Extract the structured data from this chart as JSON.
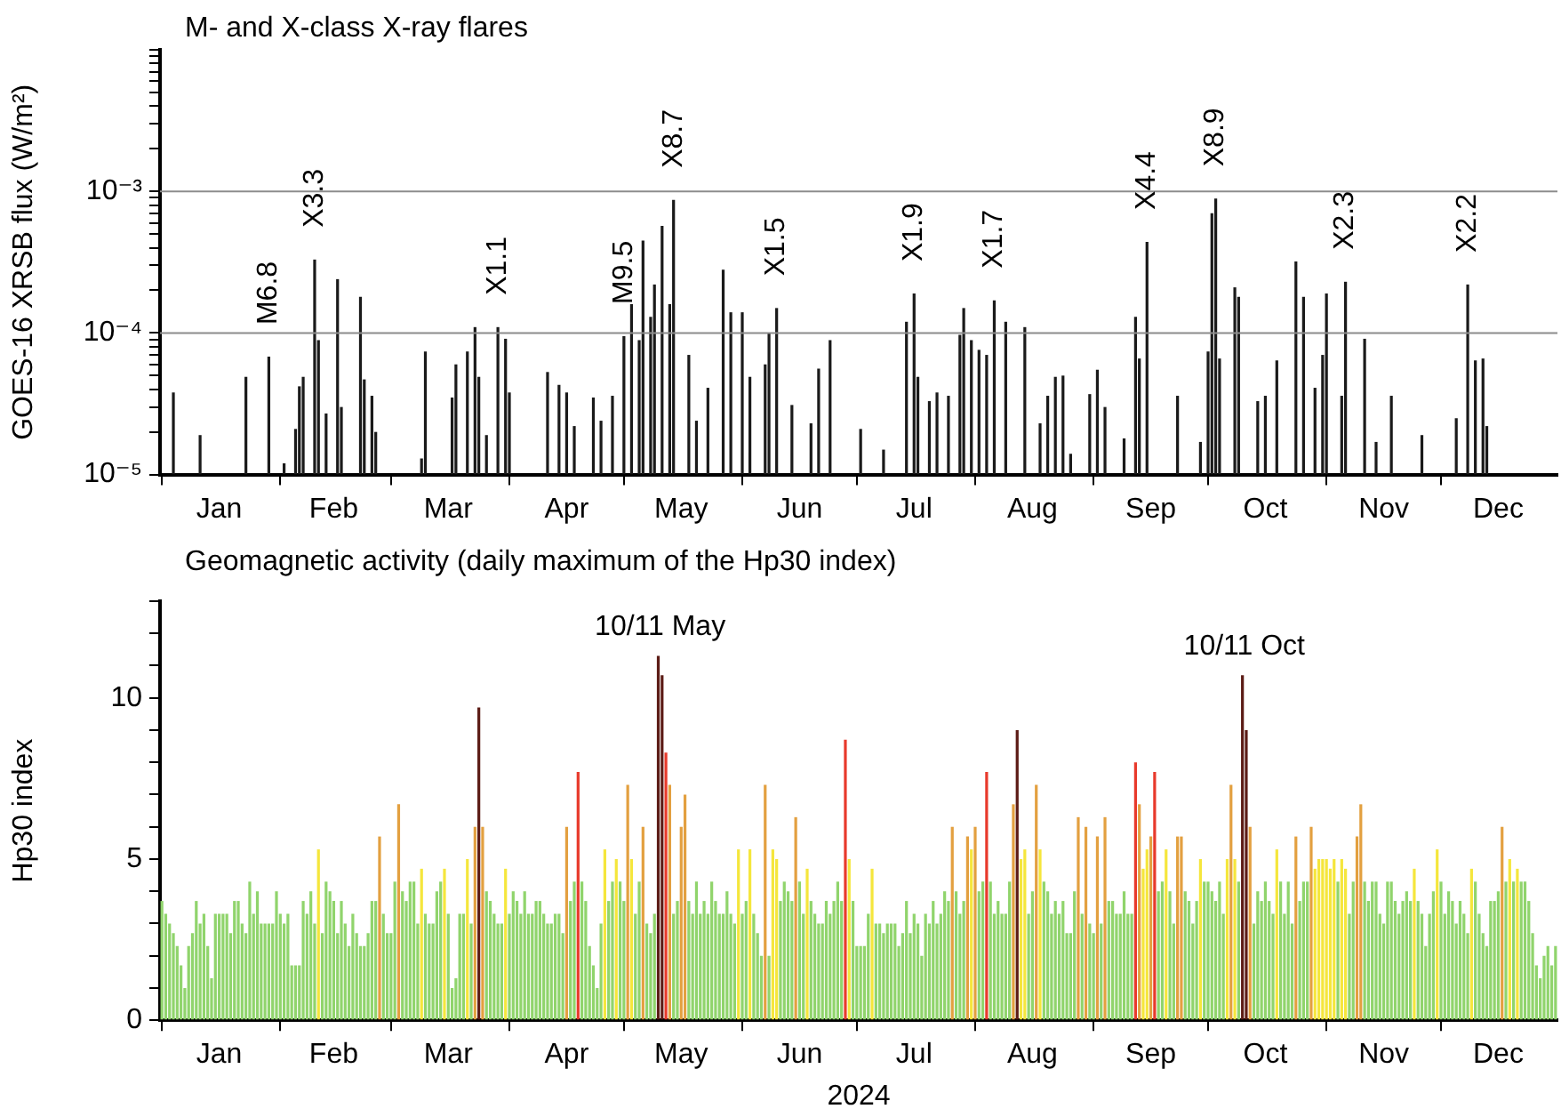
{
  "chart_data": [
    {
      "type": "bar",
      "title": "M- and X-class X-ray flares",
      "ylabel": "GOES-16 XRSB flux (W/m²)",
      "log": true,
      "color": "#1a1a1a",
      "xlim": [
        "2023-12-31T12:00",
        "2024-12-31T12:00"
      ],
      "xticks": [
        {
          "value": "2024-01-01",
          "label": null
        },
        {
          "value": "2024-01-16",
          "label": "Jan"
        },
        {
          "value": "2024-02-01",
          "label": null
        },
        {
          "value": "2024-02-15",
          "label": "Feb"
        },
        {
          "value": "2024-03-01",
          "label": null
        },
        {
          "value": "2024-03-16",
          "label": "Mar"
        },
        {
          "value": "2024-04-01",
          "label": null
        },
        {
          "value": "2024-04-16",
          "label": "Apr"
        },
        {
          "value": "2024-05-01",
          "label": null
        },
        {
          "value": "2024-05-16",
          "label": "May"
        },
        {
          "value": "2024-06-01",
          "label": null
        },
        {
          "value": "2024-06-16",
          "label": "Jun"
        },
        {
          "value": "2024-07-01",
          "label": null
        },
        {
          "value": "2024-07-16",
          "label": "Jul"
        },
        {
          "value": "2024-08-01",
          "label": null
        },
        {
          "value": "2024-08-16",
          "label": "Aug"
        },
        {
          "value": "2024-09-01",
          "label": null
        },
        {
          "value": "2024-09-16",
          "label": "Sep"
        },
        {
          "value": "2024-10-01",
          "label": null
        },
        {
          "value": "2024-10-16",
          "label": "Oct"
        },
        {
          "value": "2024-11-01",
          "label": null
        },
        {
          "value": "2024-11-16",
          "label": "Nov"
        },
        {
          "value": "2024-12-01",
          "label": null
        },
        {
          "value": "2024-12-16",
          "label": "Dec"
        }
      ],
      "ylim": [
        1e-05,
        0.01
      ],
      "yticks": [
        {
          "value": 1e-05,
          "label": "10⁻⁵"
        },
        {
          "value": 2e-05,
          "label": null
        },
        {
          "value": 3e-05,
          "label": null
        },
        {
          "value": 4e-05,
          "label": null
        },
        {
          "value": 5e-05,
          "label": null
        },
        {
          "value": 6e-05,
          "label": null
        },
        {
          "value": 7e-05,
          "label": null
        },
        {
          "value": 8e-05,
          "label": null
        },
        {
          "value": 9e-05,
          "label": null
        },
        {
          "value": 0.0001,
          "label": "10⁻⁴"
        },
        {
          "value": 0.0002,
          "label": null
        },
        {
          "value": 0.0003,
          "label": null
        },
        {
          "value": 0.0004,
          "label": null
        },
        {
          "value": 0.0005,
          "label": null
        },
        {
          "value": 0.0006,
          "label": null
        },
        {
          "value": 0.0007,
          "label": null
        },
        {
          "value": 0.0008,
          "label": null
        },
        {
          "value": 0.0009,
          "label": null
        },
        {
          "value": 0.001,
          "label": "10⁻³"
        },
        {
          "value": 0.002,
          "label": null
        },
        {
          "value": 0.003,
          "label": null
        },
        {
          "value": 0.004,
          "label": null
        },
        {
          "value": 0.005,
          "label": null
        },
        {
          "value": 0.006,
          "label": null
        },
        {
          "value": 0.007,
          "label": null
        },
        {
          "value": 0.008,
          "label": null
        },
        {
          "value": 0.009,
          "label": null
        },
        {
          "value": 0.01,
          "label": null
        }
      ],
      "ref_lines": [
        {
          "axis": "y",
          "value": 0.0001,
          "color": "#8c8c8c"
        },
        {
          "axis": "y",
          "value": 0.001,
          "color": "#8c8c8c"
        }
      ],
      "x": [
        "2024-01-04",
        "2024-01-11",
        "2024-01-23",
        "2024-01-29",
        "2024-02-02",
        "2024-02-05",
        "2024-02-06",
        "2024-02-07",
        "2024-02-10",
        "2024-02-11",
        "2024-02-13",
        "2024-02-16",
        "2024-02-17",
        "2024-02-22",
        "2024-02-23",
        "2024-02-25",
        "2024-02-26",
        "2024-03-09",
        "2024-03-10",
        "2024-03-17",
        "2024-03-18",
        "2024-03-21",
        "2024-03-23",
        "2024-03-24",
        "2024-03-26",
        "2024-03-29",
        "2024-03-31",
        "2024-04-01",
        "2024-04-11",
        "2024-04-14",
        "2024-04-16",
        "2024-04-18",
        "2024-04-23",
        "2024-04-25",
        "2024-04-28",
        "2024-05-01",
        "2024-05-03",
        "2024-05-05",
        "2024-05-06",
        "2024-05-08",
        "2024-05-09",
        "2024-05-11",
        "2024-05-13",
        "2024-05-14",
        "2024-05-18",
        "2024-05-20",
        "2024-05-23",
        "2024-05-27",
        "2024-05-29",
        "2024-06-01",
        "2024-06-03",
        "2024-06-07",
        "2024-06-08",
        "2024-06-10",
        "2024-06-14",
        "2024-06-19",
        "2024-06-21",
        "2024-06-24",
        "2024-07-02",
        "2024-07-08",
        "2024-07-14",
        "2024-07-16",
        "2024-07-17",
        "2024-07-20",
        "2024-07-22",
        "2024-07-25",
        "2024-07-28",
        "2024-07-29",
        "2024-07-31",
        "2024-08-02",
        "2024-08-04",
        "2024-08-06",
        "2024-08-09",
        "2024-08-14",
        "2024-08-18",
        "2024-08-20",
        "2024-08-22",
        "2024-08-24",
        "2024-08-26",
        "2024-08-31",
        "2024-09-02",
        "2024-09-04",
        "2024-09-09",
        "2024-09-12",
        "2024-09-13",
        "2024-09-15",
        "2024-09-23",
        "2024-09-29",
        "2024-10-01",
        "2024-10-02",
        "2024-10-03",
        "2024-10-04",
        "2024-10-08",
        "2024-10-09",
        "2024-10-14",
        "2024-10-16",
        "2024-10-19",
        "2024-10-24",
        "2024-10-26",
        "2024-10-29",
        "2024-10-31",
        "2024-11-01",
        "2024-11-05",
        "2024-11-06",
        "2024-11-11",
        "2024-11-14",
        "2024-11-18",
        "2024-11-26",
        "2024-12-05",
        "2024-12-08",
        "2024-12-10",
        "2024-12-12",
        "2024-12-13"
      ],
      "values": [
        3.8e-05,
        1.9e-05,
        4.9e-05,
        6.8e-05,
        1.2e-05,
        2.1e-05,
        4.2e-05,
        4.9e-05,
        0.00033,
        8.9e-05,
        2.7e-05,
        0.00024,
        3e-05,
        0.00018,
        4.7e-05,
        3.6e-05,
        2e-05,
        1.3e-05,
        7.4e-05,
        3.5e-05,
        6e-05,
        7.4e-05,
        0.00011,
        4.9e-05,
        1.9e-05,
        0.00011,
        9.1e-05,
        3.8e-05,
        5.3e-05,
        4.3e-05,
        3.8e-05,
        2.2e-05,
        3.5e-05,
        2.4e-05,
        3.6e-05,
        9.5e-05,
        0.00016,
        8.9e-05,
        0.00045,
        0.00013,
        0.00022,
        0.00057,
        0.00016,
        0.00087,
        7e-05,
        2.4e-05,
        4.1e-05,
        0.00028,
        0.00014,
        0.00014,
        4.9e-05,
        6e-05,
        0.0001,
        0.00015,
        3.1e-05,
        2.3e-05,
        5.6e-05,
        8.9e-05,
        2.1e-05,
        1.5e-05,
        0.00012,
        0.00019,
        4.9e-05,
        3.3e-05,
        3.8e-05,
        3.6e-05,
        9.7e-05,
        0.00015,
        8.9e-05,
        7.6e-05,
        7e-05,
        0.00017,
        0.00012,
        0.00011,
        2.3e-05,
        3.6e-05,
        4.9e-05,
        5e-05,
        1.4e-05,
        3.7e-05,
        5.5e-05,
        3e-05,
        1.8e-05,
        0.00013,
        6.6e-05,
        0.00044,
        3.6e-05,
        1.7e-05,
        7.4e-05,
        0.0007,
        0.00089,
        6.6e-05,
        0.00021,
        0.00018,
        3.3e-05,
        3.6e-05,
        6.4e-05,
        0.00032,
        0.00018,
        4.1e-05,
        7e-05,
        0.00019,
        3.6e-05,
        0.00023,
        9.1e-05,
        1.7e-05,
        3.6e-05,
        1.9e-05,
        2.5e-05,
        0.00022,
        6.4e-05,
        6.6e-05,
        2.2e-05
      ],
      "annotations": [
        {
          "text": "M6.8",
          "x": "2024-01-29",
          "y": 6.8e-05
        },
        {
          "text": "X3.3",
          "x": "2024-02-10",
          "y": 0.00033
        },
        {
          "text": "X1.1",
          "x": "2024-03-29",
          "y": 0.00011
        },
        {
          "text": "M9.5",
          "x": "2024-05-01",
          "y": 9.5e-05
        },
        {
          "text": "X8.7",
          "x": "2024-05-14",
          "y": 0.00087
        },
        {
          "text": "X1.5",
          "x": "2024-06-10",
          "y": 0.00015
        },
        {
          "text": "X1.9",
          "x": "2024-07-16",
          "y": 0.00019
        },
        {
          "text": "X1.7",
          "x": "2024-08-06",
          "y": 0.00017
        },
        {
          "text": "X4.4",
          "x": "2024-09-15",
          "y": 0.00044
        },
        {
          "text": "X8.9",
          "x": "2024-10-03",
          "y": 0.00089
        },
        {
          "text": "X2.3",
          "x": "2024-11-06",
          "y": 0.00023
        },
        {
          "text": "X2.2",
          "x": "2024-12-08",
          "y": 0.00022
        }
      ]
    },
    {
      "type": "bar",
      "title": "Geomagnetic activity (daily maximum of the Hp30 index)",
      "ylabel": "Hp30 index",
      "xlabel": "2024",
      "xlim": [
        "2023-12-31T12:00",
        "2024-12-31T12:00"
      ],
      "xticks": [
        {
          "value": "2024-01-01",
          "label": null
        },
        {
          "value": "2024-01-16",
          "label": "Jan"
        },
        {
          "value": "2024-02-01",
          "label": null
        },
        {
          "value": "2024-02-15",
          "label": "Feb"
        },
        {
          "value": "2024-03-01",
          "label": null
        },
        {
          "value": "2024-03-16",
          "label": "Mar"
        },
        {
          "value": "2024-04-01",
          "label": null
        },
        {
          "value": "2024-04-16",
          "label": "Apr"
        },
        {
          "value": "2024-05-01",
          "label": null
        },
        {
          "value": "2024-05-16",
          "label": "May"
        },
        {
          "value": "2024-06-01",
          "label": null
        },
        {
          "value": "2024-06-16",
          "label": "Jun"
        },
        {
          "value": "2024-07-01",
          "label": null
        },
        {
          "value": "2024-07-16",
          "label": "Jul"
        },
        {
          "value": "2024-08-01",
          "label": null
        },
        {
          "value": "2024-08-16",
          "label": "Aug"
        },
        {
          "value": "2024-09-01",
          "label": null
        },
        {
          "value": "2024-09-16",
          "label": "Sep"
        },
        {
          "value": "2024-10-01",
          "label": null
        },
        {
          "value": "2024-10-16",
          "label": "Oct"
        },
        {
          "value": "2024-11-01",
          "label": null
        },
        {
          "value": "2024-11-16",
          "label": "Nov"
        },
        {
          "value": "2024-12-01",
          "label": null
        },
        {
          "value": "2024-12-16",
          "label": "Dec"
        }
      ],
      "ylim": [
        0,
        13
      ],
      "yticks": [
        0,
        {
          "value": 1,
          "label": null
        },
        {
          "value": 2,
          "label": null
        },
        {
          "value": 3,
          "label": null
        },
        {
          "value": 4,
          "label": null
        },
        5,
        {
          "value": 6,
          "label": null
        },
        {
          "value": 7,
          "label": null
        },
        {
          "value": 8,
          "label": null
        },
        {
          "value": 9,
          "label": null
        },
        10,
        {
          "value": 11,
          "label": null
        },
        {
          "value": 12,
          "label": null
        },
        {
          "value": 13,
          "label": null
        }
      ],
      "annotations": [
        {
          "text": "10/11 May",
          "x": "2024-05-10T12:00",
          "y": 11.3
        },
        {
          "text": "10/11 Oct",
          "x": "2024-10-10T12:00",
          "y": 10.7
        }
      ],
      "x": [
        "2024-01-01",
        "2024-01-02",
        "2024-01-03",
        "2024-01-04",
        "2024-01-05",
        "2024-01-06",
        "2024-01-07",
        "2024-01-08",
        "2024-01-09",
        "2024-01-10",
        "2024-01-11",
        "2024-01-12",
        "2024-01-13",
        "2024-01-14",
        "2024-01-15",
        "2024-01-16",
        "2024-01-17",
        "2024-01-18",
        "2024-01-19",
        "2024-01-20",
        "2024-01-21",
        "2024-01-22",
        "2024-01-23",
        "2024-01-24",
        "2024-01-25",
        "2024-01-26",
        "2024-01-27",
        "2024-01-28",
        "2024-01-29",
        "2024-01-30",
        "2024-01-31",
        "2024-02-01",
        "2024-02-02",
        "2024-02-03",
        "2024-02-04",
        "2024-02-05",
        "2024-02-06",
        "2024-02-07",
        "2024-02-08",
        "2024-02-09",
        "2024-02-10",
        "2024-02-11",
        "2024-02-12",
        "2024-02-13",
        "2024-02-14",
        "2024-02-15",
        "2024-02-16",
        "2024-02-17",
        "2024-02-18",
        "2024-02-19",
        "2024-02-20",
        "2024-02-21",
        "2024-02-22",
        "2024-02-23",
        "2024-02-24",
        "2024-02-25",
        "2024-02-26",
        "2024-02-27",
        "2024-02-28",
        "2024-02-29",
        "2024-03-01",
        "2024-03-02",
        "2024-03-03",
        "2024-03-04",
        "2024-03-05",
        "2024-03-06",
        "2024-03-07",
        "2024-03-08",
        "2024-03-09",
        "2024-03-10",
        "2024-03-11",
        "2024-03-12",
        "2024-03-13",
        "2024-03-14",
        "2024-03-15",
        "2024-03-16",
        "2024-03-17",
        "2024-03-18",
        "2024-03-19",
        "2024-03-20",
        "2024-03-21",
        "2024-03-22",
        "2024-03-23",
        "2024-03-24",
        "2024-03-25",
        "2024-03-26",
        "2024-03-27",
        "2024-03-28",
        "2024-03-29",
        "2024-03-30",
        "2024-03-31",
        "2024-04-01",
        "2024-04-02",
        "2024-04-03",
        "2024-04-04",
        "2024-04-05",
        "2024-04-06",
        "2024-04-07",
        "2024-04-08",
        "2024-04-09",
        "2024-04-10",
        "2024-04-11",
        "2024-04-12",
        "2024-04-13",
        "2024-04-14",
        "2024-04-15",
        "2024-04-16",
        "2024-04-17",
        "2024-04-18",
        "2024-04-19",
        "2024-04-20",
        "2024-04-21",
        "2024-04-22",
        "2024-04-23",
        "2024-04-24",
        "2024-04-25",
        "2024-04-26",
        "2024-04-27",
        "2024-04-28",
        "2024-04-29",
        "2024-04-30",
        "2024-05-01",
        "2024-05-02",
        "2024-05-03",
        "2024-05-04",
        "2024-05-05",
        "2024-05-06",
        "2024-05-07",
        "2024-05-08",
        "2024-05-09",
        "2024-05-10",
        "2024-05-11",
        "2024-05-12",
        "2024-05-13",
        "2024-05-14",
        "2024-05-15",
        "2024-05-16",
        "2024-05-17",
        "2024-05-18",
        "2024-05-19",
        "2024-05-20",
        "2024-05-21",
        "2024-05-22",
        "2024-05-23",
        "2024-05-24",
        "2024-05-25",
        "2024-05-26",
        "2024-05-27",
        "2024-05-28",
        "2024-05-29",
        "2024-05-30",
        "2024-05-31",
        "2024-06-01",
        "2024-06-02",
        "2024-06-03",
        "2024-06-04",
        "2024-06-05",
        "2024-06-06",
        "2024-06-07",
        "2024-06-08",
        "2024-06-09",
        "2024-06-10",
        "2024-06-11",
        "2024-06-12",
        "2024-06-13",
        "2024-06-14",
        "2024-06-15",
        "2024-06-16",
        "2024-06-17",
        "2024-06-18",
        "2024-06-19",
        "2024-06-20",
        "2024-06-21",
        "2024-06-22",
        "2024-06-23",
        "2024-06-24",
        "2024-06-25",
        "2024-06-26",
        "2024-06-27",
        "2024-06-28",
        "2024-06-29",
        "2024-06-30",
        "2024-07-01",
        "2024-07-02",
        "2024-07-03",
        "2024-07-04",
        "2024-07-05",
        "2024-07-06",
        "2024-07-07",
        "2024-07-08",
        "2024-07-09",
        "2024-07-10",
        "2024-07-11",
        "2024-07-12",
        "2024-07-13",
        "2024-07-14",
        "2024-07-15",
        "2024-07-16",
        "2024-07-17",
        "2024-07-18",
        "2024-07-19",
        "2024-07-20",
        "2024-07-21",
        "2024-07-22",
        "2024-07-23",
        "2024-07-24",
        "2024-07-25",
        "2024-07-26",
        "2024-07-27",
        "2024-07-28",
        "2024-07-29",
        "2024-07-30",
        "2024-07-31",
        "2024-08-01",
        "2024-08-02",
        "2024-08-03",
        "2024-08-04",
        "2024-08-05",
        "2024-08-06",
        "2024-08-07",
        "2024-08-08",
        "2024-08-09",
        "2024-08-10",
        "2024-08-11",
        "2024-08-12",
        "2024-08-13",
        "2024-08-14",
        "2024-08-15",
        "2024-08-16",
        "2024-08-17",
        "2024-08-18",
        "2024-08-19",
        "2024-08-20",
        "2024-08-21",
        "2024-08-22",
        "2024-08-23",
        "2024-08-24",
        "2024-08-25",
        "2024-08-26",
        "2024-08-27",
        "2024-08-28",
        "2024-08-29",
        "2024-08-30",
        "2024-08-31",
        "2024-09-01",
        "2024-09-02",
        "2024-09-03",
        "2024-09-04",
        "2024-09-05",
        "2024-09-06",
        "2024-09-07",
        "2024-09-08",
        "2024-09-09",
        "2024-09-10",
        "2024-09-11",
        "2024-09-12",
        "2024-09-13",
        "2024-09-14",
        "2024-09-15",
        "2024-09-16",
        "2024-09-17",
        "2024-09-18",
        "2024-09-19",
        "2024-09-20",
        "2024-09-21",
        "2024-09-22",
        "2024-09-23",
        "2024-09-24",
        "2024-09-25",
        "2024-09-26",
        "2024-09-27",
        "2024-09-28",
        "2024-09-29",
        "2024-09-30",
        "2024-10-01",
        "2024-10-02",
        "2024-10-03",
        "2024-10-04",
        "2024-10-05",
        "2024-10-06",
        "2024-10-07",
        "2024-10-08",
        "2024-10-09",
        "2024-10-10",
        "2024-10-11",
        "2024-10-12",
        "2024-10-13",
        "2024-10-14",
        "2024-10-15",
        "2024-10-16",
        "2024-10-17",
        "2024-10-18",
        "2024-10-19",
        "2024-10-20",
        "2024-10-21",
        "2024-10-22",
        "2024-10-23",
        "2024-10-24",
        "2024-10-25",
        "2024-10-26",
        "2024-10-27",
        "2024-10-28",
        "2024-10-29",
        "2024-10-30",
        "2024-10-31",
        "2024-11-01",
        "2024-11-02",
        "2024-11-03",
        "2024-11-04",
        "2024-11-05",
        "2024-11-06",
        "2024-11-07",
        "2024-11-08",
        "2024-11-09",
        "2024-11-10",
        "2024-11-11",
        "2024-11-12",
        "2024-11-13",
        "2024-11-14",
        "2024-11-15",
        "2024-11-16",
        "2024-11-17",
        "2024-11-18",
        "2024-11-19",
        "2024-11-20",
        "2024-11-21",
        "2024-11-22",
        "2024-11-23",
        "2024-11-24",
        "2024-11-25",
        "2024-11-26",
        "2024-11-27",
        "2024-11-28",
        "2024-11-29",
        "2024-11-30",
        "2024-12-01",
        "2024-12-02",
        "2024-12-03",
        "2024-12-04",
        "2024-12-05",
        "2024-12-06",
        "2024-12-07",
        "2024-12-08",
        "2024-12-09",
        "2024-12-10",
        "2024-12-11",
        "2024-12-12",
        "2024-12-13",
        "2024-12-14",
        "2024-12-15",
        "2024-12-16",
        "2024-12-17",
        "2024-12-18",
        "2024-12-19",
        "2024-12-20",
        "2024-12-21",
        "2024-12-22",
        "2024-12-23",
        "2024-12-24",
        "2024-12-25",
        "2024-12-26",
        "2024-12-27",
        "2024-12-28",
        "2024-12-29",
        "2024-12-30",
        "2024-12-31"
      ],
      "values": [
        3.7,
        3.3,
        3,
        2.7,
        2.3,
        1.7,
        1,
        2.3,
        2.7,
        3.7,
        3,
        3.3,
        2.3,
        1.3,
        3.3,
        3.3,
        3.3,
        3.3,
        2.7,
        3.7,
        3.7,
        3,
        2.7,
        4.3,
        3.3,
        4,
        3,
        3,
        3,
        3,
        4,
        3.3,
        3,
        3.3,
        1.7,
        1.7,
        1.7,
        3.7,
        3.3,
        4,
        3,
        5.3,
        2.7,
        4.3,
        4,
        3.7,
        2.7,
        3.7,
        3,
        2.3,
        3.3,
        2.7,
        2.3,
        2.3,
        2.7,
        3.7,
        3.7,
        5.7,
        3.3,
        2.7,
        2.7,
        4.3,
        6.7,
        4,
        3.7,
        4.3,
        4.3,
        3,
        4.7,
        3.3,
        3,
        3,
        4,
        4.3,
        4.7,
        3.3,
        1,
        1.3,
        3.3,
        3.3,
        5,
        3,
        6,
        9.7,
        6,
        4,
        3.7,
        3.3,
        3,
        3,
        4.7,
        3.3,
        4,
        3.7,
        3.3,
        4,
        3.3,
        3.3,
        3.7,
        3.7,
        3.3,
        3,
        3,
        3.3,
        3.3,
        2.7,
        6,
        3.7,
        4.3,
        7.7,
        4.3,
        3.7,
        2.3,
        1.7,
        1,
        3,
        5.3,
        3.7,
        4.3,
        5,
        4.3,
        3.7,
        7.3,
        5,
        3.3,
        4.3,
        6,
        3,
        2.7,
        3.3,
        11.3,
        10.7,
        8.3,
        7.3,
        3.3,
        3.7,
        6,
        7,
        3.7,
        3.3,
        4.3,
        3.3,
        3.7,
        3.3,
        4.3,
        3.7,
        3.3,
        3.3,
        4,
        3.3,
        3,
        5.3,
        3.3,
        3.7,
        5.3,
        3.3,
        2.7,
        2,
        7.3,
        2,
        5.3,
        5,
        3.7,
        4.3,
        4,
        3.7,
        6.3,
        4.3,
        3.3,
        4.7,
        3.7,
        3.3,
        3,
        3,
        3.7,
        3.3,
        3.7,
        4.3,
        3.7,
        8.7,
        5,
        3.7,
        2.3,
        2.3,
        2.3,
        3.3,
        4.7,
        3,
        3,
        2.7,
        3,
        3,
        3,
        2.3,
        2.7,
        3.7,
        2.7,
        3.3,
        3,
        2,
        3.3,
        3,
        3.7,
        3,
        3.3,
        4,
        3.7,
        6,
        4,
        3.3,
        3.7,
        5.7,
        5.3,
        6,
        4,
        4.3,
        7.7,
        4.3,
        3.3,
        3.7,
        3.3,
        3.3,
        4.3,
        6.7,
        9,
        5,
        5.3,
        3.3,
        4,
        7.3,
        5.3,
        4.3,
        4,
        3.3,
        3.7,
        3.3,
        3.7,
        2.7,
        2.7,
        4,
        6.3,
        3.3,
        6,
        3,
        2.7,
        5.7,
        3,
        6.3,
        3.7,
        3.7,
        3.3,
        3.3,
        4,
        3.3,
        3.3,
        8,
        6.7,
        4.7,
        5.3,
        5.7,
        7.7,
        4,
        4.3,
        5.3,
        4,
        3,
        5.7,
        5.7,
        4,
        3.7,
        3,
        3.7,
        5,
        4.3,
        4.3,
        4,
        3.7,
        4.3,
        3.3,
        5,
        7.3,
        5,
        4.3,
        10.7,
        9,
        6,
        3,
        4,
        3.7,
        4.3,
        3.7,
        3.3,
        5.3,
        4.3,
        3.3,
        4.3,
        3,
        5.7,
        3.7,
        4.3,
        4.3,
        6,
        4.7,
        5,
        5,
        5,
        4.7,
        5,
        4.3,
        5,
        4.7,
        3.3,
        4.3,
        5.7,
        6.7,
        4.3,
        3.7,
        4.3,
        4.3,
        3.3,
        3,
        4.3,
        4.3,
        3.7,
        3.3,
        3.7,
        4,
        3.7,
        4.7,
        3.7,
        3.3,
        2.3,
        3.3,
        4,
        5.3,
        4.3,
        3.3,
        4,
        3.7,
        3,
        3.7,
        3.3,
        2.7,
        4.7,
        4.3,
        3.3,
        2.7,
        2.3,
        3.7,
        3.7,
        4,
        6,
        4.3,
        5,
        4.3,
        4.7,
        4.3,
        4.3,
        3.7,
        2.7,
        1.7,
        1.3,
        2,
        2.3,
        1.7,
        2.3
      ],
      "colors": [
        "#90d46c",
        "#90d46c",
        "#90d46c",
        "#90d46c",
        "#90d46c",
        "#90d46c",
        "#90d46c",
        "#90d46c",
        "#90d46c",
        "#90d46c",
        "#90d46c",
        "#90d46c",
        "#90d46c",
        "#90d46c",
        "#90d46c",
        "#90d46c",
        "#90d46c",
        "#90d46c",
        "#90d46c",
        "#90d46c",
        "#90d46c",
        "#90d46c",
        "#90d46c",
        "#90d46c",
        "#90d46c",
        "#90d46c",
        "#90d46c",
        "#90d46c",
        "#90d46c",
        "#90d46c",
        "#90d46c",
        "#90d46c",
        "#90d46c",
        "#90d46c",
        "#90d46c",
        "#90d46c",
        "#90d46c",
        "#90d46c",
        "#90d46c",
        "#90d46c",
        "#90d46c",
        "#f5e63c",
        "#90d46c",
        "#90d46c",
        "#90d46c",
        "#90d46c",
        "#90d46c",
        "#90d46c",
        "#90d46c",
        "#90d46c",
        "#90d46c",
        "#90d46c",
        "#90d46c",
        "#90d46c",
        "#90d46c",
        "#90d46c",
        "#90d46c",
        "#e3a040",
        "#90d46c",
        "#90d46c",
        "#90d46c",
        "#90d46c",
        "#e3a040",
        "#90d46c",
        "#90d46c",
        "#90d46c",
        "#90d46c",
        "#90d46c",
        "#f5e63c",
        "#90d46c",
        "#90d46c",
        "#90d46c",
        "#90d46c",
        "#90d46c",
        "#f5e63c",
        "#90d46c",
        "#90d46c",
        "#90d46c",
        "#90d46c",
        "#90d46c",
        "#f5e63c",
        "#90d46c",
        "#e3a040",
        "#5c1c16",
        "#e3a040",
        "#90d46c",
        "#90d46c",
        "#90d46c",
        "#90d46c",
        "#90d46c",
        "#f5e63c",
        "#90d46c",
        "#90d46c",
        "#90d46c",
        "#90d46c",
        "#90d46c",
        "#90d46c",
        "#90d46c",
        "#90d46c",
        "#90d46c",
        "#90d46c",
        "#90d46c",
        "#90d46c",
        "#90d46c",
        "#90d46c",
        "#90d46c",
        "#e3a040",
        "#90d46c",
        "#90d46c",
        "#e83a2c",
        "#90d46c",
        "#90d46c",
        "#90d46c",
        "#90d46c",
        "#90d46c",
        "#90d46c",
        "#f5e63c",
        "#90d46c",
        "#90d46c",
        "#f5e63c",
        "#90d46c",
        "#90d46c",
        "#e3a040",
        "#f5e63c",
        "#90d46c",
        "#90d46c",
        "#e3a040",
        "#90d46c",
        "#90d46c",
        "#90d46c",
        "#5c1c16",
        "#5c1c16",
        "#e83a2c",
        "#e3a040",
        "#90d46c",
        "#90d46c",
        "#e3a040",
        "#e3a040",
        "#90d46c",
        "#90d46c",
        "#90d46c",
        "#90d46c",
        "#90d46c",
        "#90d46c",
        "#90d46c",
        "#90d46c",
        "#90d46c",
        "#90d46c",
        "#90d46c",
        "#90d46c",
        "#90d46c",
        "#f5e63c",
        "#90d46c",
        "#90d46c",
        "#f5e63c",
        "#90d46c",
        "#90d46c",
        "#90d46c",
        "#e3a040",
        "#90d46c",
        "#f5e63c",
        "#f5e63c",
        "#90d46c",
        "#90d46c",
        "#90d46c",
        "#90d46c",
        "#e3a040",
        "#90d46c",
        "#90d46c",
        "#f5e63c",
        "#90d46c",
        "#90d46c",
        "#90d46c",
        "#90d46c",
        "#90d46c",
        "#90d46c",
        "#90d46c",
        "#90d46c",
        "#90d46c",
        "#e83a2c",
        "#f5e63c",
        "#90d46c",
        "#90d46c",
        "#90d46c",
        "#90d46c",
        "#90d46c",
        "#f5e63c",
        "#90d46c",
        "#90d46c",
        "#90d46c",
        "#90d46c",
        "#90d46c",
        "#90d46c",
        "#90d46c",
        "#90d46c",
        "#90d46c",
        "#90d46c",
        "#90d46c",
        "#90d46c",
        "#90d46c",
        "#90d46c",
        "#90d46c",
        "#90d46c",
        "#90d46c",
        "#90d46c",
        "#90d46c",
        "#90d46c",
        "#e3a040",
        "#90d46c",
        "#90d46c",
        "#90d46c",
        "#e3a040",
        "#f5e63c",
        "#e3a040",
        "#90d46c",
        "#90d46c",
        "#e83a2c",
        "#90d46c",
        "#90d46c",
        "#90d46c",
        "#90d46c",
        "#90d46c",
        "#90d46c",
        "#e3a040",
        "#5c1c16",
        "#f5e63c",
        "#f5e63c",
        "#90d46c",
        "#90d46c",
        "#e3a040",
        "#f5e63c",
        "#90d46c",
        "#90d46c",
        "#90d46c",
        "#90d46c",
        "#90d46c",
        "#90d46c",
        "#90d46c",
        "#90d46c",
        "#90d46c",
        "#e3a040",
        "#90d46c",
        "#e3a040",
        "#90d46c",
        "#90d46c",
        "#e3a040",
        "#90d46c",
        "#e3a040",
        "#90d46c",
        "#90d46c",
        "#90d46c",
        "#90d46c",
        "#90d46c",
        "#90d46c",
        "#90d46c",
        "#e83a2c",
        "#e3a040",
        "#f5e63c",
        "#f5e63c",
        "#e3a040",
        "#e83a2c",
        "#90d46c",
        "#90d46c",
        "#f5e63c",
        "#90d46c",
        "#90d46c",
        "#e3a040",
        "#e3a040",
        "#90d46c",
        "#90d46c",
        "#90d46c",
        "#90d46c",
        "#f5e63c",
        "#90d46c",
        "#90d46c",
        "#90d46c",
        "#90d46c",
        "#90d46c",
        "#90d46c",
        "#f5e63c",
        "#e3a040",
        "#f5e63c",
        "#90d46c",
        "#5c1c16",
        "#5c1c16",
        "#e3a040",
        "#90d46c",
        "#90d46c",
        "#90d46c",
        "#90d46c",
        "#90d46c",
        "#90d46c",
        "#f5e63c",
        "#90d46c",
        "#90d46c",
        "#90d46c",
        "#90d46c",
        "#e3a040",
        "#90d46c",
        "#90d46c",
        "#90d46c",
        "#e3a040",
        "#f5e63c",
        "#f5e63c",
        "#f5e63c",
        "#f5e63c",
        "#f5e63c",
        "#f5e63c",
        "#90d46c",
        "#f5e63c",
        "#f5e63c",
        "#90d46c",
        "#90d46c",
        "#e3a040",
        "#e3a040",
        "#90d46c",
        "#90d46c",
        "#90d46c",
        "#90d46c",
        "#90d46c",
        "#90d46c",
        "#90d46c",
        "#90d46c",
        "#90d46c",
        "#90d46c",
        "#90d46c",
        "#90d46c",
        "#90d46c",
        "#f5e63c",
        "#90d46c",
        "#90d46c",
        "#90d46c",
        "#90d46c",
        "#90d46c",
        "#f5e63c",
        "#90d46c",
        "#90d46c",
        "#90d46c",
        "#90d46c",
        "#90d46c",
        "#90d46c",
        "#90d46c",
        "#90d46c",
        "#f5e63c",
        "#90d46c",
        "#90d46c",
        "#90d46c",
        "#90d46c",
        "#90d46c",
        "#90d46c",
        "#90d46c",
        "#e3a040",
        "#90d46c",
        "#f5e63c",
        "#90d46c",
        "#f5e63c",
        "#90d46c",
        "#90d46c",
        "#90d46c",
        "#90d46c",
        "#90d46c",
        "#90d46c",
        "#90d46c",
        "#90d46c",
        "#90d46c",
        "#90d46c"
      ]
    }
  ]
}
